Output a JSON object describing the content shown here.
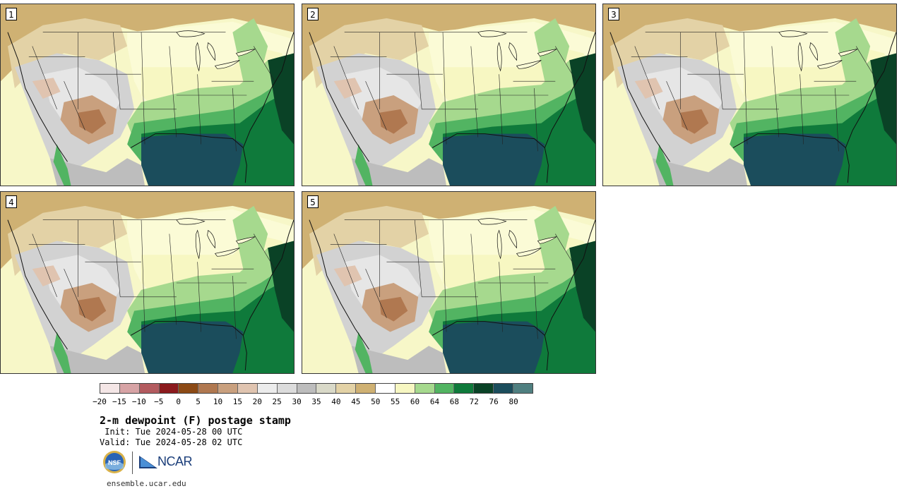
{
  "panels": [
    {
      "label": "1"
    },
    {
      "label": "2"
    },
    {
      "label": "3"
    },
    {
      "label": "4"
    },
    {
      "label": "5"
    }
  ],
  "colorbar": {
    "ticks": [
      "−20",
      "−15",
      "−10",
      "−5",
      "0",
      "5",
      "10",
      "15",
      "20",
      "25",
      "30",
      "35",
      "40",
      "45",
      "50",
      "55",
      "60",
      "64",
      "68",
      "72",
      "76",
      "80"
    ],
    "colors": [
      "#f4e6e6",
      "#d7a3a5",
      "#b35b5f",
      "#8b1a1d",
      "#8c4a15",
      "#b07850",
      "#c9a07e",
      "#e0c4b0",
      "#ececec",
      "#dcdcdc",
      "#bdbdbd",
      "#d9d9c8",
      "#e3d2a6",
      "#cfb173",
      "#ffffff",
      "#f7f7c2",
      "#a6d98e",
      "#52b462",
      "#0f7a3b",
      "#0a4226",
      "#1b4d5c",
      "#4f7f80"
    ]
  },
  "title": "2-m dewpoint (F) postage stamp",
  "init_line": " Init: Tue 2024-05-28 00 UTC",
  "valid_line": "Valid: Tue 2024-05-28 02 UTC",
  "logos": {
    "nsf": "NSF",
    "ncar": "NCAR"
  },
  "site": "ensemble.ucar.edu"
}
